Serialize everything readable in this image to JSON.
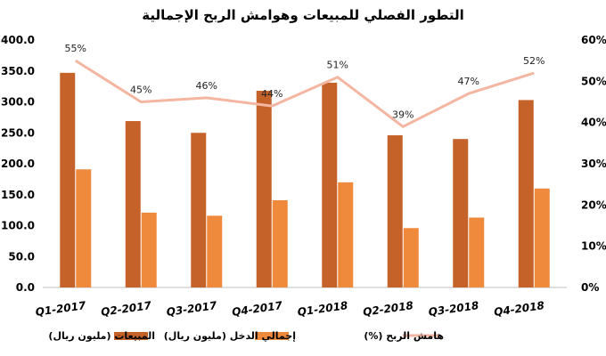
{
  "chart_data": {
    "type": "bar",
    "title": "التطور الفصلي للمبيعات وهوامش الربح الإجمالية",
    "categories": [
      "Q1-2017",
      "Q2-2017",
      "Q3-2017",
      "Q4-2017",
      "Q1-2018",
      "Q2-2018",
      "Q3-2018",
      "Q4-2018"
    ],
    "series": [
      {
        "name": "المبيعات (مليون ريال)",
        "type": "bar",
        "axis": "left",
        "color": "#c5622a",
        "values": [
          347,
          269,
          250,
          318,
          331,
          246,
          240,
          303
        ]
      },
      {
        "name": "إجمالي الدخل (مليون ريال)",
        "type": "bar",
        "axis": "left",
        "color": "#ef8a3c",
        "values": [
          191,
          121,
          116,
          141,
          170,
          96,
          113,
          160
        ]
      },
      {
        "name": "هامش الربح (%)",
        "type": "line",
        "axis": "right",
        "color": "#f4b6a0",
        "values": [
          55,
          45,
          46,
          44,
          51,
          39,
          47,
          52
        ],
        "labels": [
          "55%",
          "45%",
          "46%",
          "44%",
          "51%",
          "39%",
          "47%",
          "52%"
        ]
      }
    ],
    "y_left": {
      "min": 0,
      "max": 400,
      "ticks": [
        "0.0",
        "50.0",
        "100.0",
        "150.0",
        "200.0",
        "250.0",
        "300.0",
        "350.0",
        "400.0"
      ]
    },
    "y_right": {
      "min": 0,
      "max": 60,
      "ticks": [
        "0%",
        "10%",
        "20%",
        "30%",
        "40%",
        "50%",
        "60%"
      ]
    },
    "grid": false,
    "legend_position": "bottom"
  }
}
